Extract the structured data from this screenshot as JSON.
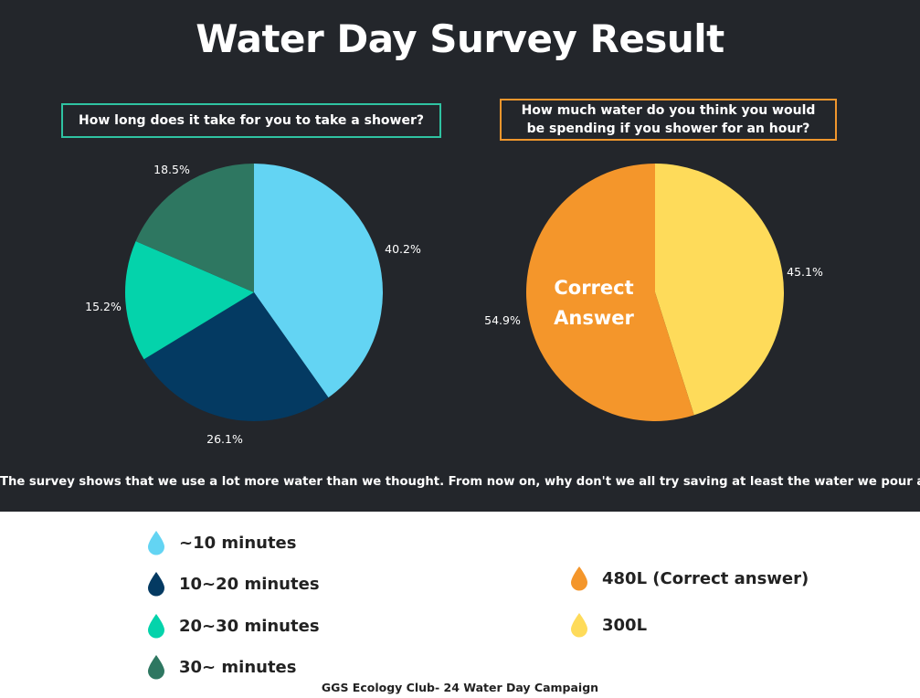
{
  "title": "Water Day Survey Result",
  "chart_data": [
    {
      "type": "pie",
      "title": "How long does it take for you to take a shower?",
      "slices": [
        {
          "label": "~10 minutes",
          "value": 40.2,
          "display": "40.2%",
          "color": "#63d4f3"
        },
        {
          "label": "10~20 minutes",
          "value": 26.1,
          "display": "26.1%",
          "color": "#043a62"
        },
        {
          "label": "20~30 minutes",
          "value": 15.2,
          "display": "15.2%",
          "color": "#04d3ab"
        },
        {
          "label": "30~ minutes",
          "value": 18.5,
          "display": "18.5%",
          "color": "#2e7761"
        }
      ]
    },
    {
      "type": "pie",
      "title": "How much water do you think you would\nbe spending if you shower for an hour?",
      "slices": [
        {
          "label": "300L",
          "value": 45.1,
          "display": "45.1%",
          "color": "#fedb5a"
        },
        {
          "label": "480L (Correct answer)",
          "value": 54.9,
          "display": "54.9%",
          "color": "#f4962b"
        }
      ],
      "annotation": "Correct\nAnswer"
    }
  ],
  "summary": "The survey shows that we use a lot more water than we thought.  From now on, why don't we all try saving at least the water we pour away?",
  "legend_left": [
    {
      "label": "~10 minutes",
      "color": "#63d4f3",
      "icon": "water-drop-icon"
    },
    {
      "label": "10~20 minutes",
      "color": "#043a62",
      "icon": "water-drop-icon"
    },
    {
      "label": "20~30 minutes",
      "color": "#04d3ab",
      "icon": "water-drop-icon"
    },
    {
      "label": "30~ minutes",
      "color": "#2e7761",
      "icon": "water-drop-icon"
    }
  ],
  "legend_right": [
    {
      "label": "480L (Correct answer)",
      "color": "#f4962b",
      "icon": "water-drop-icon"
    },
    {
      "label": "300L",
      "color": "#fedb5a",
      "icon": "water-drop-icon"
    }
  ],
  "footer": "GGS Ecology Club- 24 Water Day Campaign"
}
